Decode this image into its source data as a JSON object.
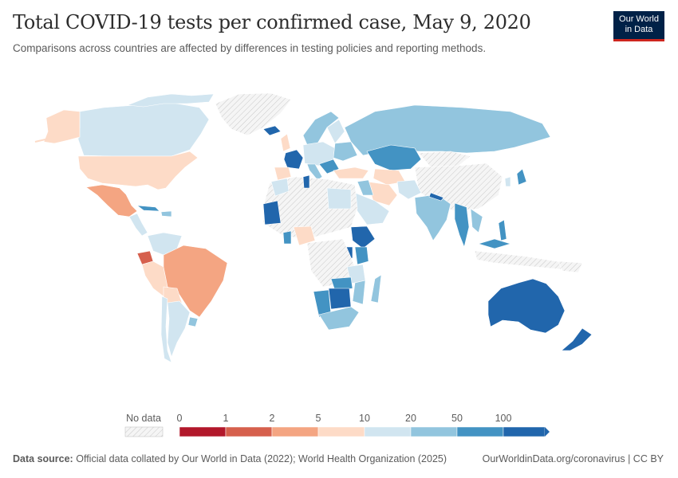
{
  "header": {
    "title": "Total COVID-19 tests per confirmed case, May 9, 2020",
    "subtitle": "Comparisons across countries are affected by differences in testing policies and reporting methods."
  },
  "logo": {
    "line1": "Our World",
    "line2": "in Data"
  },
  "legend": {
    "no_data_label": "No data",
    "bins": [
      {
        "label": "0",
        "color": "#b2182b"
      },
      {
        "label": "1",
        "color": "#d6604d"
      },
      {
        "label": "2",
        "color": "#f4a582"
      },
      {
        "label": "5",
        "color": "#fddbc7"
      },
      {
        "label": "10",
        "color": "#d1e5f0"
      },
      {
        "label": "20",
        "color": "#92c5de"
      },
      {
        "label": "50",
        "color": "#4393c3"
      },
      {
        "label": "100",
        "color": "#2166ac"
      }
    ]
  },
  "footer": {
    "source_label": "Data source:",
    "source_text": "Official data collated by Our World in Data (2022); World Health Organization (2025)",
    "link": "OurWorldinData.org/coronavirus | CC BY"
  },
  "colors": {
    "no_data": "#ebebeb",
    "brand_bg": "#002147",
    "brand_accent": "#ce261e"
  }
}
